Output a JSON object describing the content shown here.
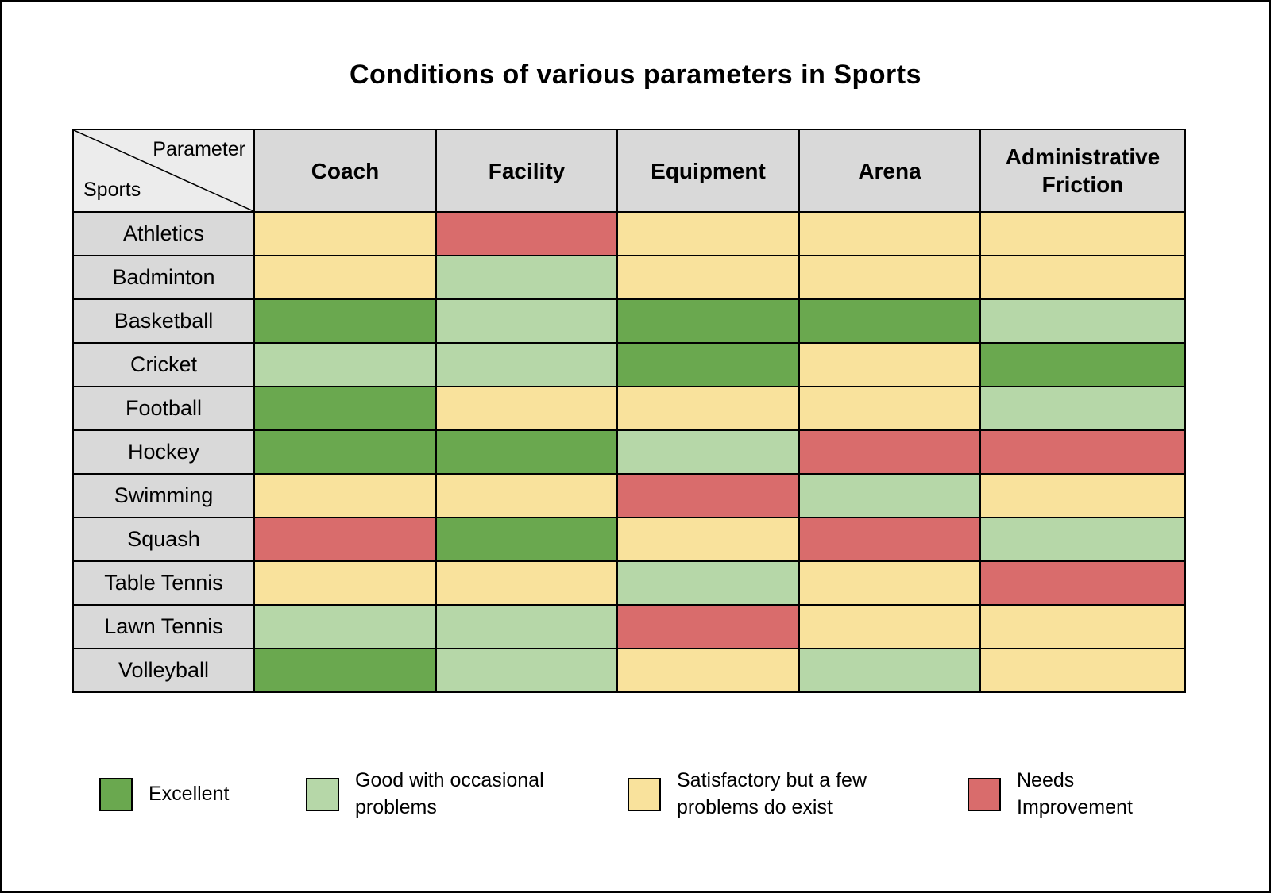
{
  "title": "Conditions of various parameters in Sports",
  "corner": {
    "parameter_label": "Parameter",
    "sports_label": "Sports"
  },
  "colors": {
    "excellent": "#6aa84f",
    "good": "#b6d7a8",
    "satisfactory": "#f9e29c",
    "needs_improvement": "#d96c6c",
    "header_bg": "#d9d9d9",
    "corner_bg": "#ececec",
    "border": "#000000"
  },
  "chart_data": {
    "type": "heatmap",
    "title": "Conditions of various parameters in Sports",
    "columns": [
      "Coach",
      "Facility",
      "Equipment",
      "Arena",
      "Administrative Friction"
    ],
    "rows": [
      "Athletics",
      "Badminton",
      "Basketball",
      "Cricket",
      "Football",
      "Hockey",
      "Swimming",
      "Squash",
      "Table Tennis",
      "Lawn Tennis",
      "Volleyball"
    ],
    "value_scale": [
      "excellent",
      "good",
      "satisfactory",
      "needs_improvement"
    ],
    "values": [
      [
        "satisfactory",
        "needs_improvement",
        "satisfactory",
        "satisfactory",
        "satisfactory"
      ],
      [
        "satisfactory",
        "good",
        "satisfactory",
        "satisfactory",
        "satisfactory"
      ],
      [
        "excellent",
        "good",
        "excellent",
        "excellent",
        "good"
      ],
      [
        "good",
        "good",
        "excellent",
        "satisfactory",
        "excellent"
      ],
      [
        "excellent",
        "satisfactory",
        "satisfactory",
        "satisfactory",
        "good"
      ],
      [
        "excellent",
        "excellent",
        "good",
        "needs_improvement",
        "needs_improvement"
      ],
      [
        "satisfactory",
        "satisfactory",
        "needs_improvement",
        "good",
        "satisfactory"
      ],
      [
        "needs_improvement",
        "excellent",
        "satisfactory",
        "needs_improvement",
        "good"
      ],
      [
        "satisfactory",
        "satisfactory",
        "good",
        "satisfactory",
        "needs_improvement"
      ],
      [
        "good",
        "good",
        "needs_improvement",
        "satisfactory",
        "satisfactory"
      ],
      [
        "excellent",
        "good",
        "satisfactory",
        "good",
        "satisfactory"
      ]
    ],
    "legend": [
      {
        "key": "excellent",
        "label": "Excellent"
      },
      {
        "key": "good",
        "label": "Good with occasional problems"
      },
      {
        "key": "satisfactory",
        "label": "Satisfactory but a few problems do exist"
      },
      {
        "key": "needs_improvement",
        "label": "Needs Improvement"
      }
    ],
    "legend_position": "bottom"
  }
}
